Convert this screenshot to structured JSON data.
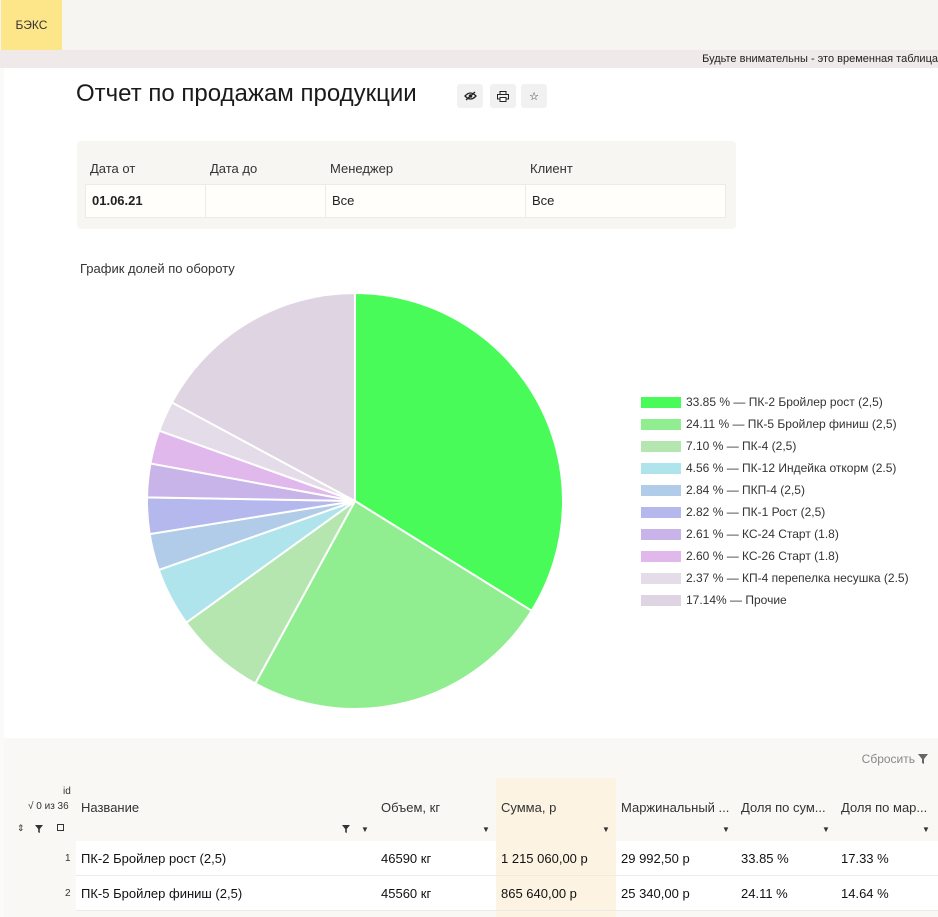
{
  "app": {
    "brand": "БЭКС",
    "warning": "Будьте внимательны - это временная таблица"
  },
  "page": {
    "title": "Отчет по продажам продукции"
  },
  "toolbar": {
    "view_icon": "eye-icon",
    "print_icon": "printer-icon",
    "star_icon": "star-icon"
  },
  "filters": {
    "date_from": {
      "label": "Дата от",
      "value": "01.06.21"
    },
    "date_to": {
      "label": "Дата до",
      "value": ""
    },
    "manager": {
      "label": "Менеджер",
      "value": "Все"
    },
    "client": {
      "label": "Клиент",
      "value": "Все"
    }
  },
  "chart_data": {
    "type": "pie",
    "title": "График долей по обороту",
    "slices": [
      {
        "percent": 33.85,
        "label": "33.85 % — ПК-2 Бройлер рост (2,5)",
        "color": "#48fb58"
      },
      {
        "percent": 24.11,
        "label": "24.11 % — ПК-5 Бройлер финиш (2,5)",
        "color": "#90ee90"
      },
      {
        "percent": 7.1,
        "label": "7.10 % — ПК-4 (2,5)",
        "color": "#b5e6b0"
      },
      {
        "percent": 4.56,
        "label": "4.56 % — ПК-12 Индейка откорм (2.5)",
        "color": "#b0e4ec"
      },
      {
        "percent": 2.84,
        "label": "2.84 % — ПКП-4 (2,5)",
        "color": "#b0cce8"
      },
      {
        "percent": 2.82,
        "label": "2.82 % — ПК-1 Рост (2,5)",
        "color": "#b4b8ec"
      },
      {
        "percent": 2.61,
        "label": "2.61 % — КС-24 Старт (1.8)",
        "color": "#c8b4e8"
      },
      {
        "percent": 2.6,
        "label": "2.60 % — КС-26 Старт (1.8)",
        "color": "#e0b8ec"
      },
      {
        "percent": 2.37,
        "label": "2.37 % — КП-4 перепелка несушка (2.5)",
        "color": "#e4dce8"
      },
      {
        "percent": 17.14,
        "label": "17.14% — Прочие",
        "color": "#ded4e2"
      }
    ]
  },
  "table": {
    "reset_label": "Сбросить",
    "id_label": "id",
    "selection_count": "√ 0 из 36",
    "columns": [
      "Название",
      "Объем, кг",
      "Сумма, р",
      "Маржинальный ...",
      "Доля по сум...",
      "Доля по мар..."
    ],
    "rows": [
      {
        "n": "1",
        "name": "ПК-2 Бройлер рост (2,5)",
        "volume": "46590 кг",
        "sum": "1 215 060,00 р",
        "margin": "29 992,50 р",
        "share_sum": "33.85 %",
        "share_margin": "17.33 %"
      },
      {
        "n": "2",
        "name": "ПК-5 Бройлер финиш (2,5)",
        "volume": "45560 кг",
        "sum": "865 640,00 р",
        "margin": "25 340,00 р",
        "share_sum": "24.11 %",
        "share_margin": "14.64 %"
      }
    ]
  }
}
